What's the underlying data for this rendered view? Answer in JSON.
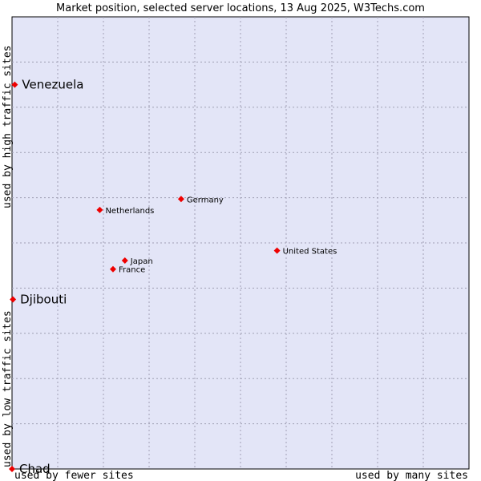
{
  "chart_data": {
    "type": "scatter",
    "title": "Market position, selected server locations, 13 Aug 2025, W3Techs.com",
    "xlabel_left": "used by fewer sites",
    "xlabel_right": "used by many sites",
    "ylabel_bottom": "used by low traffic sites",
    "ylabel_top": "used by high traffic sites",
    "xlim": [
      0,
      100
    ],
    "ylim": [
      0,
      100
    ],
    "grid": true,
    "colors": {
      "plot_background": "#e3e5f7",
      "point": "#ee0000",
      "grid": "#a0a0b4"
    },
    "points": [
      {
        "label": "Venezuela",
        "x": 0.6,
        "y": 85.0,
        "size": "large"
      },
      {
        "label": "Djibouti",
        "x": 0.2,
        "y": 37.5,
        "size": "large"
      },
      {
        "label": "Chad",
        "x": 0.0,
        "y": 0.0,
        "size": "large"
      },
      {
        "label": "Germany",
        "x": 37.0,
        "y": 59.7,
        "size": "small"
      },
      {
        "label": "Netherlands",
        "x": 19.2,
        "y": 57.3,
        "size": "small"
      },
      {
        "label": "United States",
        "x": 58.0,
        "y": 48.3,
        "size": "small"
      },
      {
        "label": "Japan",
        "x": 24.7,
        "y": 46.1,
        "size": "small"
      },
      {
        "label": "France",
        "x": 22.1,
        "y": 44.2,
        "size": "small"
      }
    ]
  }
}
